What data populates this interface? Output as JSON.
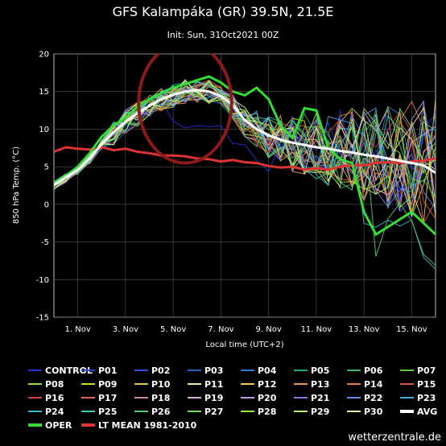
{
  "chart_data": {
    "type": "line",
    "title": "GFS Kalampáka (GR) 39.5N, 21.5E",
    "subtitle": "Init: Sun, 31Oct2021 00Z",
    "ylabel": "850 hPa Temp. (°C)",
    "xlabel": "Local time (UTC+2)",
    "ylim": [
      -15,
      20
    ],
    "yticks": [
      -15,
      -10,
      -5,
      0,
      5,
      10,
      15,
      20
    ],
    "xlim": [
      0,
      16
    ],
    "xticks": [
      {
        "x": 1,
        "label": "1. Nov"
      },
      {
        "x": 3,
        "label": "3. Nov"
      },
      {
        "x": 5,
        "label": "5. Nov"
      },
      {
        "x": 7,
        "label": "7. Nov"
      },
      {
        "x": 9,
        "label": "9. Nov"
      },
      {
        "x": 11,
        "label": "11. Nov"
      },
      {
        "x": 13,
        "label": "13. Nov"
      },
      {
        "x": 15,
        "label": "15. Nov"
      }
    ],
    "grid": true,
    "legend_position": "bottom",
    "annotation_circle": {
      "cx": 5.5,
      "cy": 13.5,
      "rx": 1.95,
      "ry": 8.0,
      "color": "#8b1a1a"
    },
    "ensemble_base": [
      2.5,
      3.5,
      4.5,
      6,
      8,
      9.5,
      11,
      12,
      13,
      14,
      14.5,
      15,
      15,
      15,
      14.5,
      13,
      11,
      10,
      9,
      8.5,
      8,
      8,
      7.8,
      7.5,
      7.2,
      7,
      6.8,
      6.6,
      6.4,
      6.2,
      6,
      5.8,
      5.6
    ],
    "avg": [
      2.6,
      3.6,
      4.6,
      6.1,
      8,
      9.6,
      11,
      12.1,
      13.1,
      14,
      14.6,
      15,
      15.2,
      15,
      14.4,
      13.2,
      11.2,
      10,
      9.2,
      8.6,
      8.2,
      7.9,
      7.6,
      7.4,
      7.1,
      6.9,
      6.6,
      6.4,
      6.1,
      5.8,
      5.5,
      5.2,
      4.2
    ],
    "oper": [
      2.8,
      3.8,
      5,
      6.8,
      9,
      10.5,
      11.5,
      13,
      14,
      14.8,
      15.5,
      16,
      16.5,
      17,
      16.2,
      15,
      14.5,
      15.5,
      14,
      10.5,
      8.8,
      12.8,
      12.5,
      7.5,
      6,
      5.5,
      -1,
      -4,
      -3,
      -2,
      -1,
      -2.5,
      -4
    ],
    "lt_mean": [
      7,
      7.6,
      7.4,
      7.3,
      7.6,
      7.2,
      7.4,
      7,
      6.8,
      6.5,
      6.5,
      6.4,
      6.1,
      6,
      5.7,
      5.9,
      5.6,
      5.5,
      5.1,
      4.9,
      5,
      4.6,
      4.8,
      4.6,
      5,
      5.2,
      5.2,
      5.5,
      5.6,
      5.5,
      5.7,
      5.8,
      6.1
    ],
    "series": [
      {
        "name": "CONTROL",
        "color": "#2233dd"
      },
      {
        "name": "P01",
        "color": "#2244cc"
      },
      {
        "name": "P02",
        "color": "#3355dd"
      },
      {
        "name": "P03",
        "color": "#2266cc"
      },
      {
        "name": "P04",
        "color": "#3377dd"
      },
      {
        "name": "P05",
        "color": "#22aa88"
      },
      {
        "name": "P06",
        "color": "#33bb66"
      },
      {
        "name": "P07",
        "color": "#66cc33"
      },
      {
        "name": "P08",
        "color": "#99dd33"
      },
      {
        "name": "P09",
        "color": "#ccdd22"
      },
      {
        "name": "P10",
        "color": "#ddcc33"
      },
      {
        "name": "P11",
        "color": "#eeee99"
      },
      {
        "name": "P12",
        "color": "#eecc55"
      },
      {
        "name": "P13",
        "color": "#ee9944"
      },
      {
        "name": "P14",
        "color": "#ee7744"
      },
      {
        "name": "P15",
        "color": "#dd5544"
      },
      {
        "name": "P16",
        "color": "#cc4444"
      },
      {
        "name": "P17",
        "color": "#dd6655"
      },
      {
        "name": "P18",
        "color": "#cc88aa"
      },
      {
        "name": "P19",
        "color": "#ddaadd"
      },
      {
        "name": "P20",
        "color": "#bb99dd"
      },
      {
        "name": "P21",
        "color": "#8877dd"
      },
      {
        "name": "P22",
        "color": "#6688ee"
      },
      {
        "name": "P23",
        "color": "#44aadd"
      },
      {
        "name": "P24",
        "color": "#33bbcc"
      },
      {
        "name": "P25",
        "color": "#44ccaa"
      },
      {
        "name": "P26",
        "color": "#55cc77"
      },
      {
        "name": "P27",
        "color": "#77dd55"
      },
      {
        "name": "P28",
        "color": "#99ee44"
      },
      {
        "name": "P29",
        "color": "#bbee66"
      },
      {
        "name": "P30",
        "color": "#eeeeaa"
      },
      {
        "name": "AVG",
        "color": "#ffffff"
      },
      {
        "name": "OPER",
        "color": "#33dd33"
      },
      {
        "name": "LT MEAN 1981-2010",
        "color": "#dd3333"
      }
    ]
  },
  "watermark": "wetterzentrale.de"
}
